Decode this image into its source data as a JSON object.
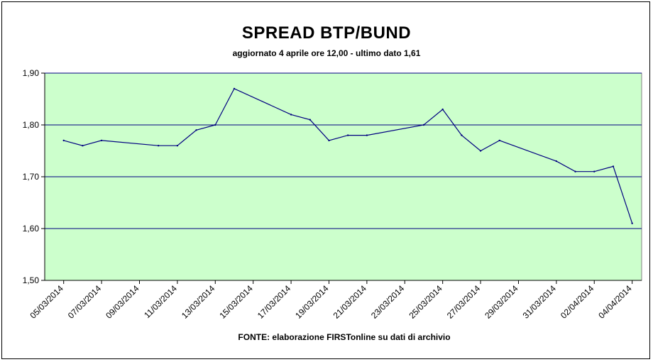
{
  "chart_data": {
    "type": "line",
    "title": "SPREAD BTP/BUND",
    "subtitle": "aggiornato 4 aprile ore 12,00 - ultimo dato 1,61",
    "source_note": "FONTE: elaborazione FIRSTonline su dati di archivio",
    "xlabel": "",
    "ylabel": "",
    "ylim": [
      1.5,
      1.9
    ],
    "y_ticks": [
      "1,50",
      "1,60",
      "1,70",
      "1,80",
      "1,90"
    ],
    "x_tick_labels": [
      "05/03/2014",
      "07/03/2014",
      "09/03/2014",
      "11/03/2014",
      "13/03/2014",
      "15/03/2014",
      "17/03/2014",
      "19/03/2014",
      "21/03/2014",
      "23/03/2014",
      "25/03/2014",
      "27/03/2014",
      "29/03/2014",
      "31/03/2014",
      "02/04/2014",
      "04/04/2014"
    ],
    "x_range": [
      "05/03/2014",
      "04/04/2014"
    ],
    "grid": "horizontal",
    "plot_background": "#ccffcc",
    "gridline_color": "#000080",
    "line_color": "#000080",
    "series": [
      {
        "points": [
          {
            "x": "05/03/2014",
            "y": 1.77
          },
          {
            "x": "06/03/2014",
            "y": 1.76
          },
          {
            "x": "07/03/2014",
            "y": 1.77
          },
          {
            "x": "10/03/2014",
            "y": 1.76
          },
          {
            "x": "11/03/2014",
            "y": 1.76
          },
          {
            "x": "12/03/2014",
            "y": 1.79
          },
          {
            "x": "13/03/2014",
            "y": 1.8
          },
          {
            "x": "14/03/2014",
            "y": 1.87
          },
          {
            "x": "17/03/2014",
            "y": 1.82
          },
          {
            "x": "18/03/2014",
            "y": 1.81
          },
          {
            "x": "19/03/2014",
            "y": 1.77
          },
          {
            "x": "20/03/2014",
            "y": 1.78
          },
          {
            "x": "21/03/2014",
            "y": 1.78
          },
          {
            "x": "24/03/2014",
            "y": 1.8
          },
          {
            "x": "25/03/2014",
            "y": 1.83
          },
          {
            "x": "26/03/2014",
            "y": 1.78
          },
          {
            "x": "27/03/2014",
            "y": 1.75
          },
          {
            "x": "28/03/2014",
            "y": 1.77
          },
          {
            "x": "31/03/2014",
            "y": 1.73
          },
          {
            "x": "01/04/2014",
            "y": 1.71
          },
          {
            "x": "02/04/2014",
            "y": 1.71
          },
          {
            "x": "03/04/2014",
            "y": 1.72
          },
          {
            "x": "04/04/2014",
            "y": 1.61
          }
        ]
      }
    ]
  }
}
